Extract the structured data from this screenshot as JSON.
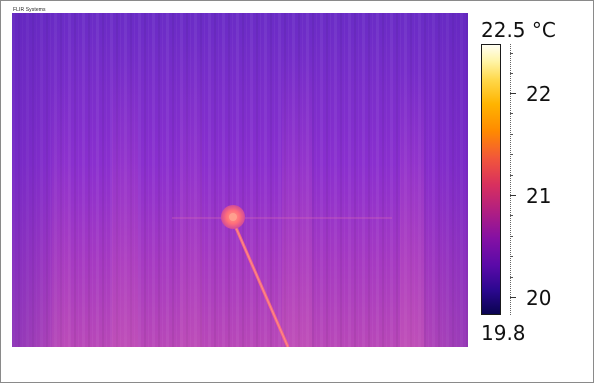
{
  "brand": {
    "text": "FLIR Systems"
  },
  "scale": {
    "max_label": "22.5 °C",
    "min_label": "19.8",
    "ticks": [
      "22",
      "21",
      "20"
    ],
    "max_value": 22.5,
    "min_value": 19.8,
    "palette": "iron",
    "palette_stops": [
      "#fffef2",
      "#ffd84a",
      "#ff8a00",
      "#d8305e",
      "#8410a4",
      "#2c0890",
      "#0a0450"
    ]
  },
  "image": {
    "background_color": "#7a2ad6",
    "hot_spot_color": "#ff7a7a",
    "line_color": "#ff6e7a"
  }
}
